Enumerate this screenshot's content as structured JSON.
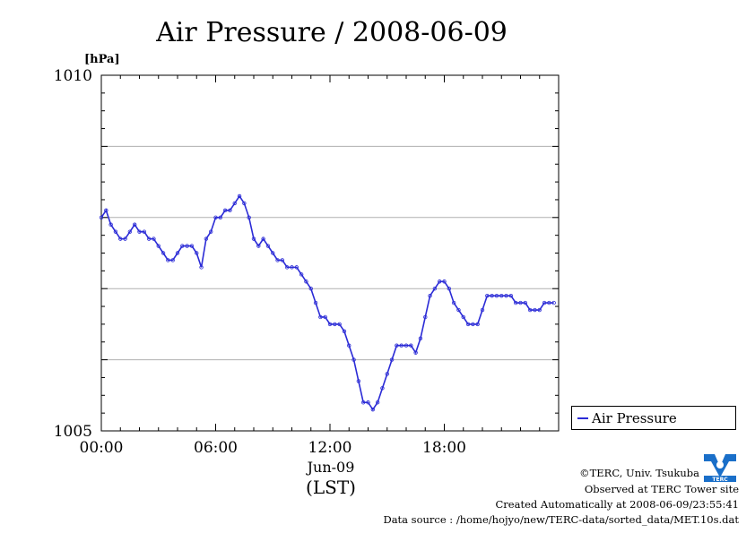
{
  "chart_data": {
    "type": "line",
    "title": "Air Pressure / 2008-06-09",
    "ylabel": "[hPa]",
    "xlabel_date": "Jun-09",
    "xlabel_tz": "(LST)",
    "ylim": [
      1005,
      1010
    ],
    "xlim_hours": [
      0,
      24
    ],
    "y_tick_labels": [
      {
        "value": 1010,
        "label": "1010"
      },
      {
        "value": 1005,
        "label": "1005"
      }
    ],
    "y_grid": [
      1006,
      1007,
      1008,
      1009
    ],
    "x_tick_labels": [
      {
        "hour": 0,
        "label": "00:00"
      },
      {
        "hour": 6,
        "label": "06:00"
      },
      {
        "hour": 12,
        "label": "12:00"
      },
      {
        "hour": 18,
        "label": "18:00"
      }
    ],
    "legend_placement": "bottom-right, outside plot",
    "grid": true,
    "series": [
      {
        "name": "Air Pressure",
        "color": "#2b2bd6",
        "x_hours": [
          0.0,
          0.25,
          0.5,
          0.75,
          1.0,
          1.25,
          1.5,
          1.75,
          2.0,
          2.25,
          2.5,
          2.75,
          3.0,
          3.25,
          3.5,
          3.75,
          4.0,
          4.25,
          4.5,
          4.75,
          5.0,
          5.25,
          5.5,
          5.75,
          6.0,
          6.25,
          6.5,
          6.75,
          7.0,
          7.25,
          7.5,
          7.75,
          8.0,
          8.25,
          8.5,
          8.75,
          9.0,
          9.25,
          9.5,
          9.75,
          10.0,
          10.25,
          10.5,
          10.75,
          11.0,
          11.25,
          11.5,
          11.75,
          12.0,
          12.25,
          12.5,
          12.75,
          13.0,
          13.25,
          13.5,
          13.75,
          14.0,
          14.25,
          14.5,
          14.75,
          15.0,
          15.25,
          15.5,
          15.75,
          16.0,
          16.25,
          16.5,
          16.75,
          17.0,
          17.25,
          17.5,
          17.75,
          18.0,
          18.25,
          18.5,
          18.75,
          19.0,
          19.25,
          19.5,
          19.75,
          20.0,
          20.25,
          20.5,
          20.75,
          21.0,
          21.25,
          21.5,
          21.75,
          22.0,
          22.25,
          22.5,
          22.75,
          23.0,
          23.25,
          23.5,
          23.75
        ],
        "values": [
          1008.0,
          1008.1,
          1007.9,
          1007.8,
          1007.7,
          1007.7,
          1007.8,
          1007.9,
          1007.8,
          1007.8,
          1007.7,
          1007.7,
          1007.6,
          1007.5,
          1007.4,
          1007.4,
          1007.5,
          1007.6,
          1007.6,
          1007.6,
          1007.5,
          1007.3,
          1007.7,
          1007.8,
          1008.0,
          1008.0,
          1008.1,
          1008.1,
          1008.2,
          1008.3,
          1008.2,
          1008.0,
          1007.7,
          1007.6,
          1007.7,
          1007.6,
          1007.5,
          1007.4,
          1007.4,
          1007.3,
          1007.3,
          1007.3,
          1007.2,
          1007.1,
          1007.0,
          1006.8,
          1006.6,
          1006.6,
          1006.5,
          1006.5,
          1006.5,
          1006.4,
          1006.2,
          1006.0,
          1005.7,
          1005.4,
          1005.4,
          1005.3,
          1005.4,
          1005.6,
          1005.8,
          1006.0,
          1006.2,
          1006.2,
          1006.2,
          1006.2,
          1006.1,
          1006.3,
          1006.6,
          1006.9,
          1007.0,
          1007.1,
          1007.1,
          1007.0,
          1006.8,
          1006.7,
          1006.6,
          1006.5,
          1006.5,
          1006.5,
          1006.7,
          1006.9,
          1006.9,
          1006.9,
          1006.9,
          1006.9,
          1006.9,
          1006.8,
          1006.8,
          1006.8,
          1006.7,
          1006.7,
          1006.7,
          1006.8,
          1006.8,
          1006.8
        ]
      }
    ]
  },
  "footer": {
    "copyright": "©TERC, Univ. Tsukuba",
    "site": "Observed at TERC Tower site",
    "created": "Created Automatically at 2008-06-09/23:55:41",
    "source": "Data source : /home/hojyo/new/TERC-data/sorted_data/MET.10s.dat"
  },
  "logo": {
    "icon": "terc-logo",
    "text": "TERC",
    "color": "#1a6fc9"
  }
}
